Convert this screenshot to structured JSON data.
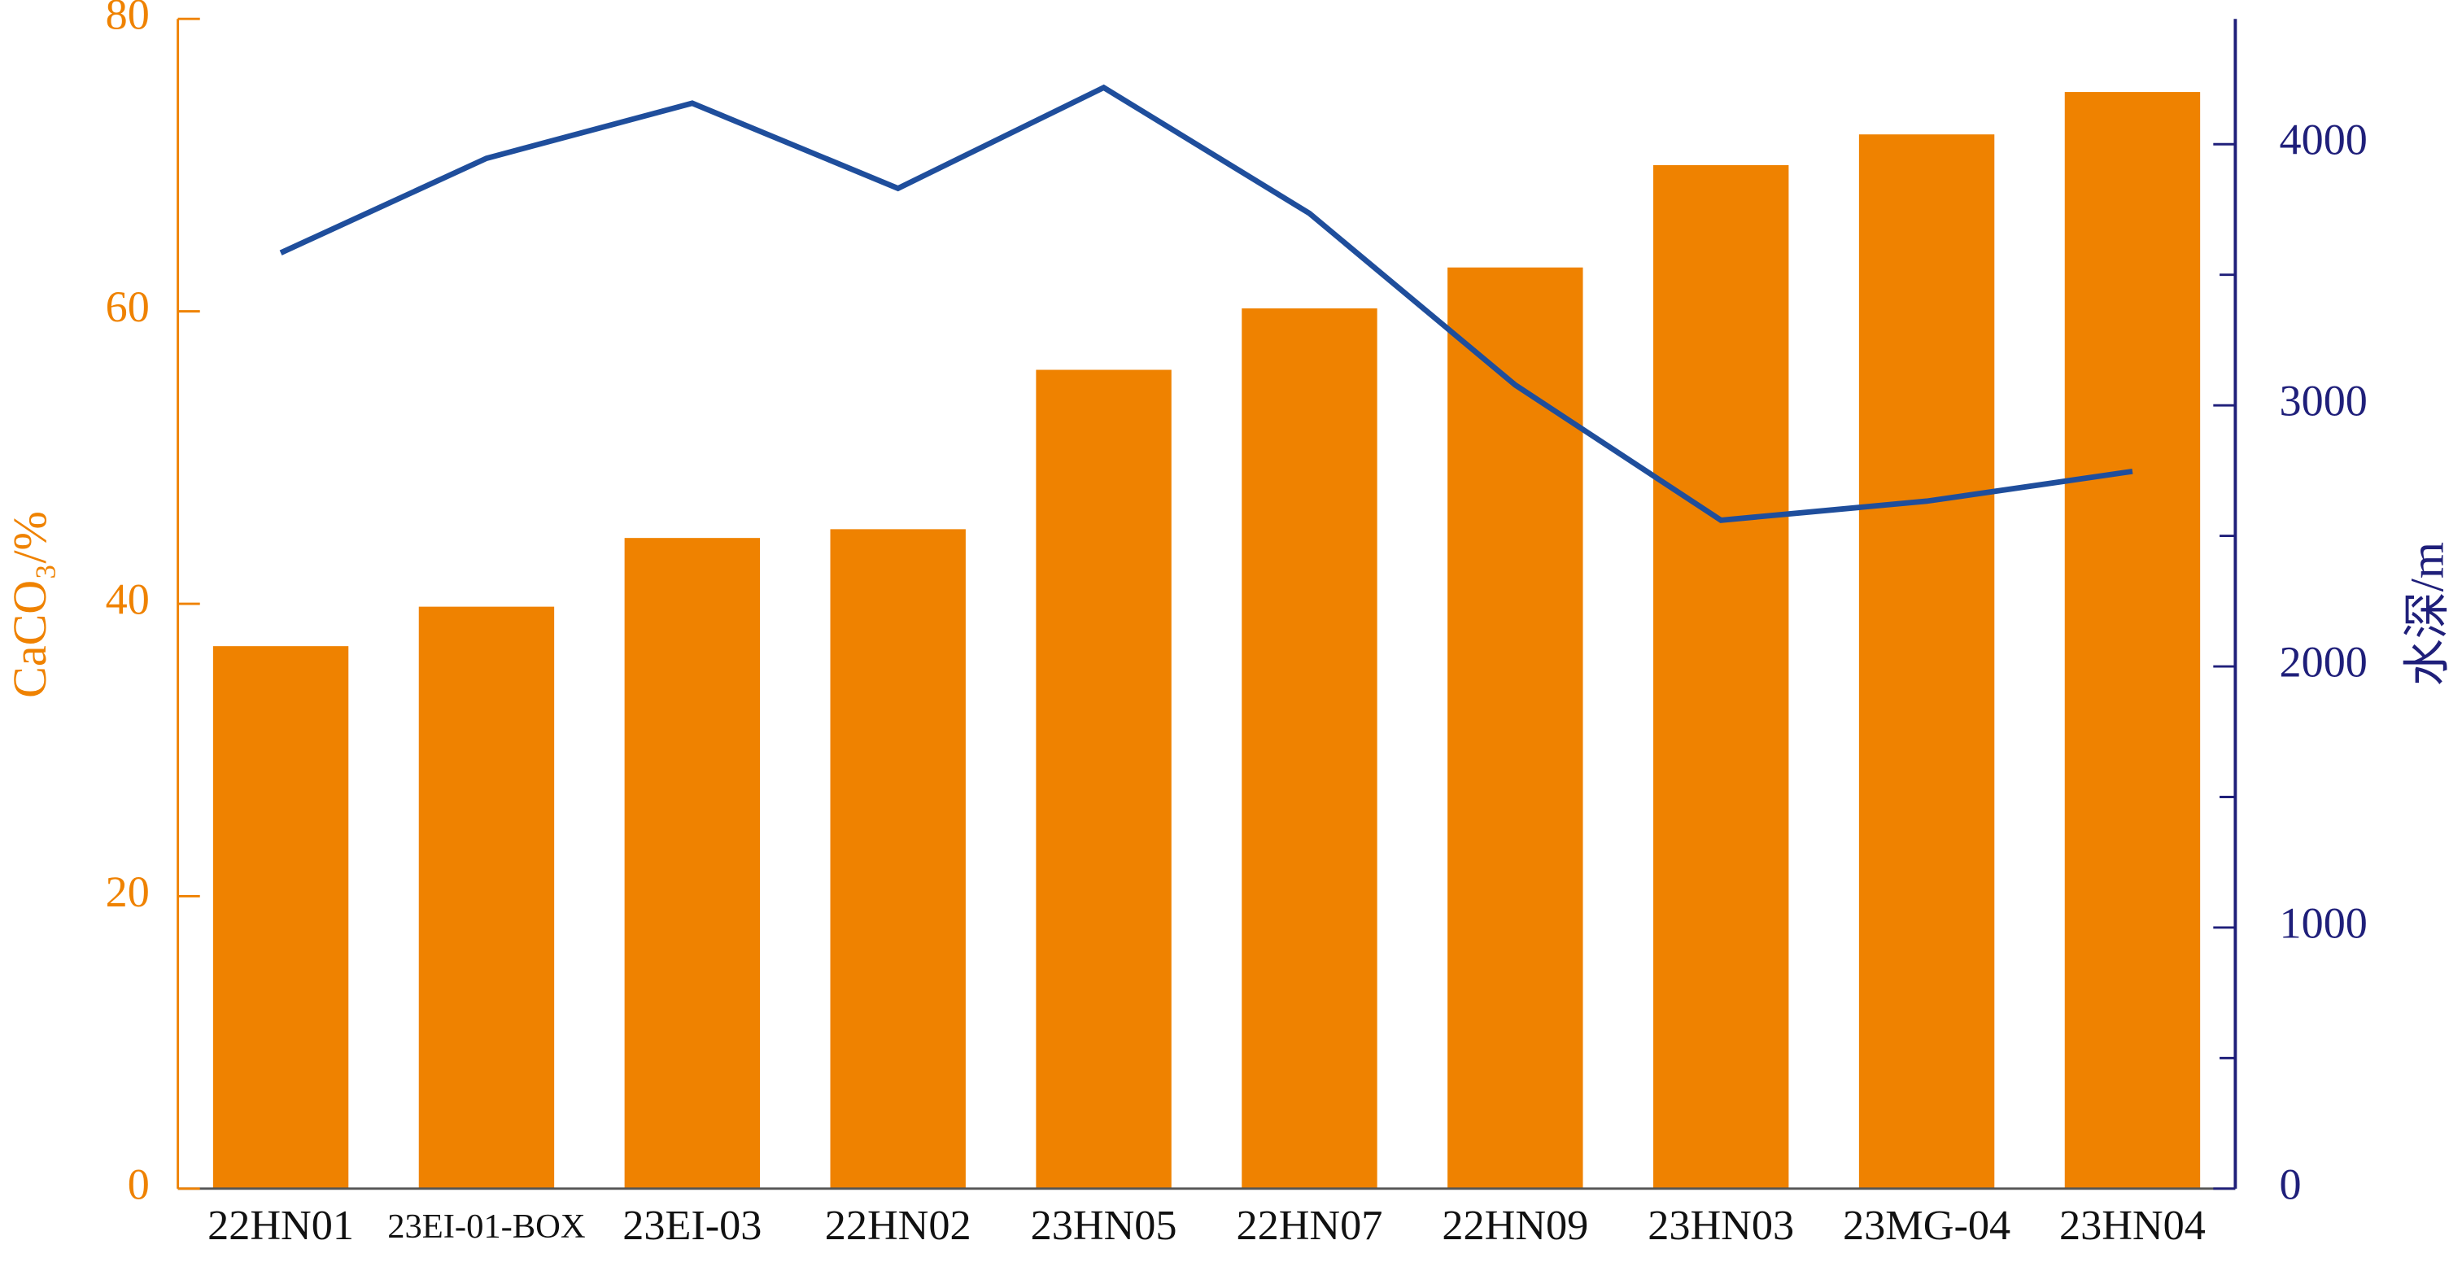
{
  "chart_data": {
    "type": "bar_line",
    "categories": [
      "22HN01",
      "23EI-01-BOX",
      "23EI-03",
      "22HN02",
      "23HN05",
      "22HN07",
      "22HN09",
      "23HN03",
      "23MG-04",
      "23HN04"
    ],
    "ylabel": "CaCO₃/%",
    "y2label": "水深/m",
    "series": [
      {
        "type": "bar",
        "color": "#ef8200",
        "values": [
          37.1,
          39.8,
          44.5,
          45.1,
          56.0,
          60.2,
          63.0,
          70.0,
          72.1,
          75.0
        ]
      },
      {
        "type": "line",
        "axis": "y2",
        "color": "#1f4e9c",
        "values": [
          3584,
          3946,
          4157,
          3831,
          4217,
          3735,
          3078,
          2560,
          2633,
          2747
        ]
      }
    ],
    "ylim": [
      0,
      80
    ],
    "yticks": [
      0,
      20,
      40,
      60,
      80
    ],
    "y2lim": [
      0,
      4480
    ],
    "y2ticks": [
      0,
      1000,
      2000,
      3000,
      4000
    ],
    "y2minor_ticks": [
      500,
      1500,
      2500,
      3500
    ],
    "ycolor": "#ef8200",
    "y2color": "#1f1f7a"
  }
}
